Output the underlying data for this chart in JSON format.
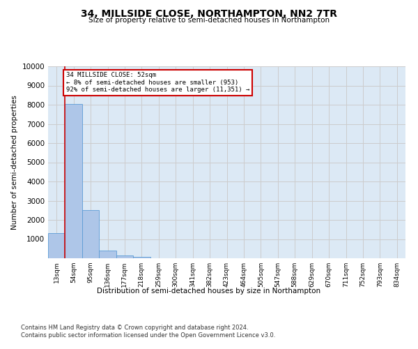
{
  "title": "34, MILLSIDE CLOSE, NORTHAMPTON, NN2 7TR",
  "subtitle": "Size of property relative to semi-detached houses in Northampton",
  "xlabel": "Distribution of semi-detached houses by size in Northampton",
  "ylabel": "Number of semi-detached properties",
  "bar_labels": [
    "13sqm",
    "54sqm",
    "95sqm",
    "136sqm",
    "177sqm",
    "218sqm",
    "259sqm",
    "300sqm",
    "341sqm",
    "382sqm",
    "423sqm",
    "464sqm",
    "505sqm",
    "547sqm",
    "588sqm",
    "629sqm",
    "670sqm",
    "711sqm",
    "752sqm",
    "793sqm",
    "834sqm"
  ],
  "bar_values": [
    1300,
    8050,
    2520,
    390,
    155,
    90,
    0,
    0,
    0,
    0,
    0,
    0,
    0,
    0,
    0,
    0,
    0,
    0,
    0,
    0,
    0
  ],
  "bar_color": "#aec6e8",
  "bar_edge_color": "#5b9bd5",
  "annotation_text": "34 MILLSIDE CLOSE: 52sqm\n← 8% of semi-detached houses are smaller (953)\n92% of semi-detached houses are larger (11,351) →",
  "annotation_box_color": "#ffffff",
  "annotation_box_edge": "#cc0000",
  "vline_color": "#cc0000",
  "ylim": [
    0,
    10000
  ],
  "yticks": [
    0,
    1000,
    2000,
    3000,
    4000,
    5000,
    6000,
    7000,
    8000,
    9000,
    10000
  ],
  "grid_color": "#cccccc",
  "bg_color": "#dce9f5",
  "footer1": "Contains HM Land Registry data © Crown copyright and database right 2024.",
  "footer2": "Contains public sector information licensed under the Open Government Licence v3.0."
}
